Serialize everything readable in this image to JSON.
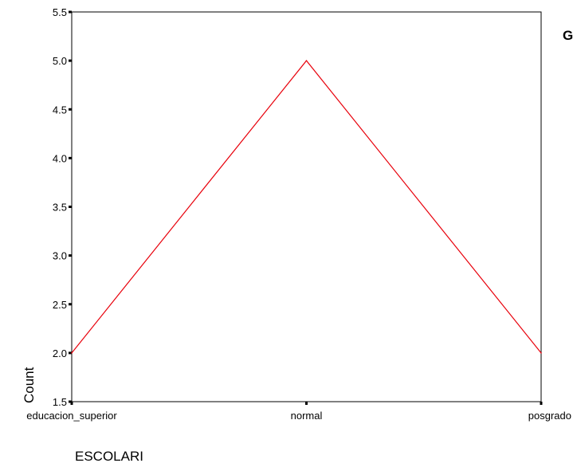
{
  "chart_data": {
    "type": "line",
    "categories": [
      "educacion_superior",
      "normal",
      "posgrado"
    ],
    "values": [
      2.0,
      5.0,
      2.0
    ],
    "xlabel": "ESCOLARI",
    "ylabel": "Count",
    "ylim": [
      1.5,
      5.5
    ],
    "yticks": [
      "1.5",
      "2.0",
      "2.5",
      "3.0",
      "3.5",
      "4.0",
      "4.5",
      "5.0",
      "5.5"
    ],
    "line_color": "#e8000b",
    "legend_label": "G",
    "grid": false
  }
}
